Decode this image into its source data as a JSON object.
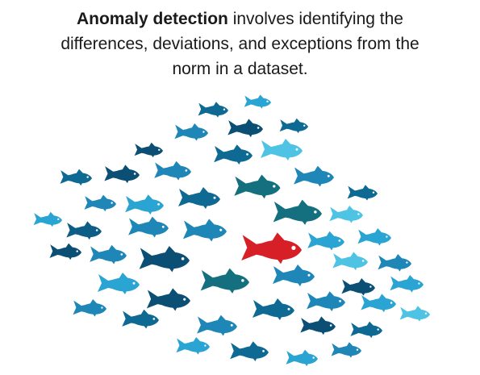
{
  "caption": {
    "bold_term": "Anomaly detection",
    "line1_rest": " involves identifying the",
    "line2": "differences, deviations, and exceptions from the",
    "line3": "norm in a dataset."
  },
  "illustration": {
    "subject": "school-of-fish",
    "colors": {
      "school_palette": [
        "#0b4f74",
        "#0e6a93",
        "#1f86b8",
        "#2aa4d2",
        "#4fc3e3",
        "#14707f",
        "#0d5d86"
      ],
      "outlier": "#d61f26",
      "outlier_dark": "#9e0f14",
      "eye": "#ffffff"
    }
  }
}
